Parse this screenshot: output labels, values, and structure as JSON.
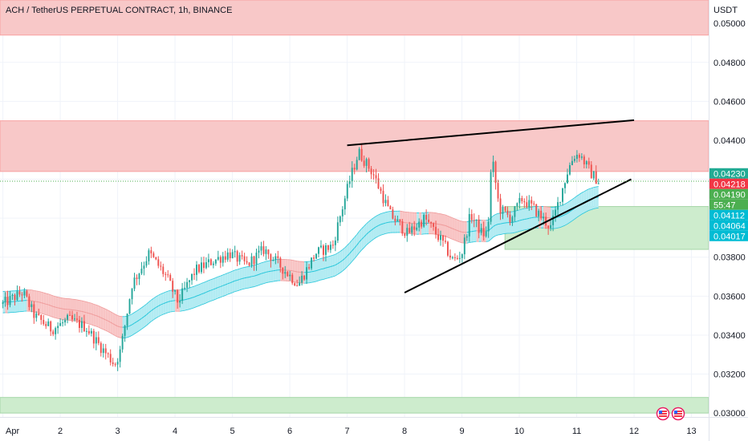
{
  "header": {
    "title": "ACH / TetherUS PERPETUAL CONTRACT, 1h, BINANCE",
    "currency": "USDT"
  },
  "price_tags": [
    {
      "label": "0.04230",
      "value": 0.0423,
      "color": "#22ab94"
    },
    {
      "label": "0.04218",
      "value": 0.04218,
      "color": "#f23645"
    },
    {
      "label": "0.04190",
      "value": 0.0419,
      "color": "#4caf50"
    },
    {
      "label": "55:47",
      "value": 0.04164,
      "color": "#4caf50"
    },
    {
      "label": "0.04112",
      "value": 0.04112,
      "color": "#00bcd4"
    },
    {
      "label": "0.04064",
      "value": 0.04064,
      "color": "#00bcd4"
    },
    {
      "label": "0.04017",
      "value": 0.04017,
      "color": "#00bcd4"
    }
  ],
  "chart_data": {
    "type": "candlestick",
    "title": "ACH / TetherUS PERPETUAL CONTRACT, 1h, BINANCE",
    "ylabel": "USDT",
    "ylim": [
      0.0298,
      0.0512
    ],
    "y_ticks": [
      "0.03000",
      "0.03200",
      "0.03400",
      "0.03600",
      "0.03800",
      "0.04000",
      "0.04200",
      "0.04400",
      "0.04600",
      "0.04800",
      "0.05000"
    ],
    "y_tick_values": [
      0.03,
      0.032,
      0.034,
      0.036,
      0.038,
      0.04,
      0.042,
      0.044,
      0.046,
      0.048,
      0.05
    ],
    "x_ticks": [
      "Apr",
      "2",
      "3",
      "4",
      "5",
      "6",
      "7",
      "8",
      "9",
      "10",
      "11",
      "12",
      "13"
    ],
    "x_tick_days": [
      1,
      2,
      3,
      4,
      5,
      6,
      7,
      8,
      9,
      10,
      11,
      12,
      13
    ],
    "xlim_days": [
      0.95,
      13.3
    ],
    "last_price": 0.0419,
    "zones": [
      {
        "type": "resistance",
        "y_from": 0.0494,
        "y_to": 0.0512,
        "color": "#f8c8c8"
      },
      {
        "type": "resistance",
        "y_from": 0.0424,
        "y_to": 0.045,
        "color": "#f8c8c8"
      },
      {
        "type": "support",
        "y_from": 0.0384,
        "y_to": 0.0406,
        "x_from_day": 9.75,
        "color": "#cdeccd"
      },
      {
        "type": "support",
        "y_from": 0.03,
        "y_to": 0.0308,
        "color": "#cdeccd"
      }
    ],
    "trendlines": [
      {
        "from": [
          7.0,
          0.04374
        ],
        "to": [
          12.0,
          0.04503
        ]
      },
      {
        "from": [
          8.0,
          0.03618
        ],
        "to": [
          11.95,
          0.042
        ]
      }
    ],
    "anchors": [
      [
        1.0,
        0.0356
      ],
      [
        1.35,
        0.0362
      ],
      [
        1.55,
        0.035
      ],
      [
        1.85,
        0.0343
      ],
      [
        2.15,
        0.0348
      ],
      [
        2.45,
        0.0344
      ],
      [
        2.65,
        0.0336
      ],
      [
        2.95,
        0.0325
      ],
      [
        3.05,
        0.0332
      ],
      [
        3.25,
        0.0366
      ],
      [
        3.55,
        0.0382
      ],
      [
        3.85,
        0.037
      ],
      [
        4.05,
        0.0357
      ],
      [
        4.35,
        0.0373
      ],
      [
        4.65,
        0.0378
      ],
      [
        4.95,
        0.0382
      ],
      [
        5.25,
        0.0376
      ],
      [
        5.55,
        0.0384
      ],
      [
        5.85,
        0.0375
      ],
      [
        6.15,
        0.0366
      ],
      [
        6.45,
        0.0382
      ],
      [
        6.75,
        0.0386
      ],
      [
        6.85,
        0.0398
      ],
      [
        7.05,
        0.042
      ],
      [
        7.2,
        0.0434
      ],
      [
        7.45,
        0.0423
      ],
      [
        7.75,
        0.0402
      ],
      [
        8.05,
        0.0392
      ],
      [
        8.35,
        0.04
      ],
      [
        8.65,
        0.0388
      ],
      [
        8.85,
        0.0378
      ],
      [
        9.0,
        0.0382
      ],
      [
        9.15,
        0.0402
      ],
      [
        9.35,
        0.0392
      ],
      [
        9.45,
        0.0392
      ],
      [
        9.52,
        0.0432
      ],
      [
        9.65,
        0.0405
      ],
      [
        9.85,
        0.04
      ],
      [
        10.05,
        0.041
      ],
      [
        10.25,
        0.0405
      ],
      [
        10.4,
        0.04
      ],
      [
        10.55,
        0.0395
      ],
      [
        10.7,
        0.041
      ],
      [
        10.85,
        0.0425
      ],
      [
        10.95,
        0.0432
      ],
      [
        11.05,
        0.0433
      ],
      [
        11.15,
        0.0428
      ],
      [
        11.25,
        0.0423
      ],
      [
        11.38,
        0.0419
      ]
    ],
    "volatility_band": "EMA-style ribbon, red when price below, cyan when above"
  }
}
